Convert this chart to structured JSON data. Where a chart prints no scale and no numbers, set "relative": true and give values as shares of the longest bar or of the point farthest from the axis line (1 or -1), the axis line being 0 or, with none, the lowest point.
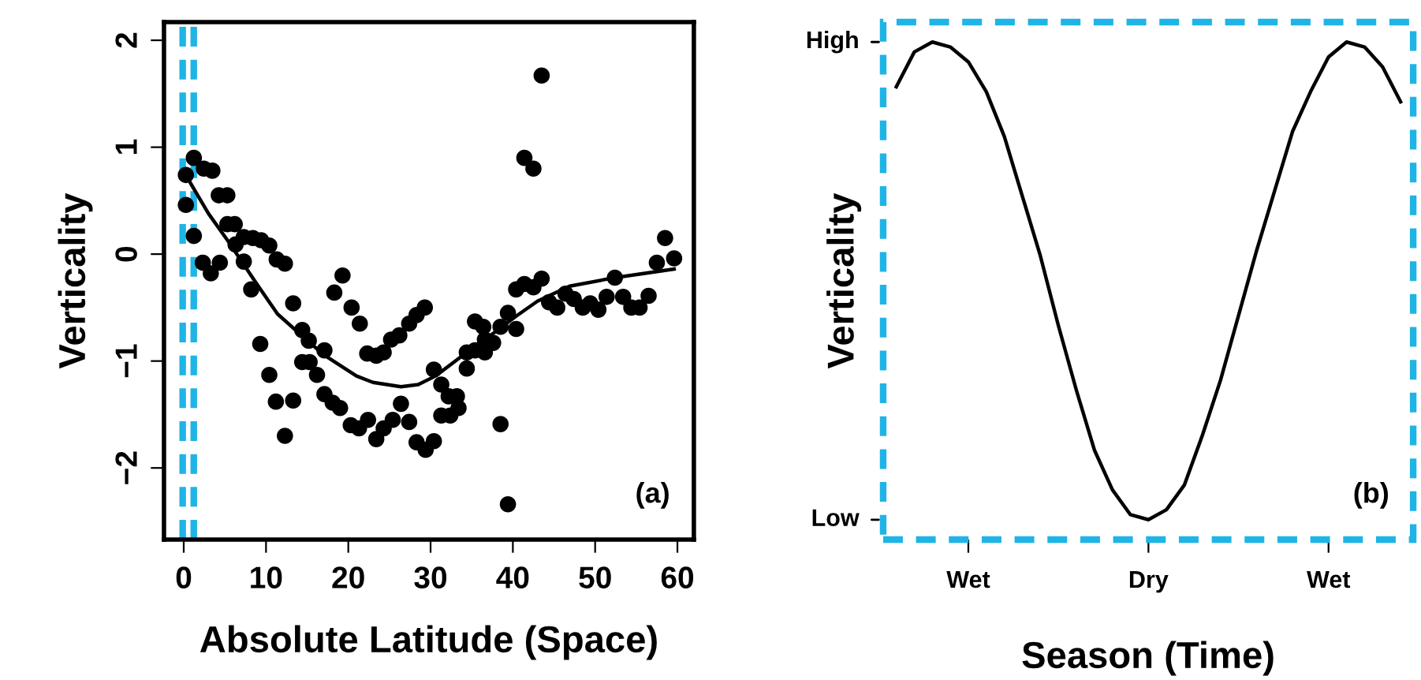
{
  "chart_data": [
    {
      "type": "scatter",
      "xlabel": "Absolute Latitude (Space)",
      "ylabel": "Verticality",
      "annotations": [
        "(a)"
      ],
      "legend": false,
      "xlim": [
        -2.4,
        62
      ],
      "ylim": [
        -2.67,
        2.17
      ],
      "xticks": [
        0,
        10,
        20,
        30,
        40,
        50,
        60
      ],
      "yticks": [
        -2,
        -1,
        0,
        1,
        2
      ],
      "ref_lines": [
        {
          "axis": "x",
          "value": -0.13,
          "color": "#1fb4e6",
          "line_style": "dashed"
        },
        {
          "axis": "x",
          "value": 1.22,
          "color": "#1fb4e6",
          "line_style": "dashed"
        }
      ],
      "series": [
        {
          "type": "scatter",
          "marker": "circle",
          "color": "#000000",
          "x": [
            0.26,
            0.26,
            1.23,
            1.23,
            2.32,
            2.45,
            3.48,
            3.29,
            4.39,
            4.26,
            5.3,
            5.3,
            6.2,
            6.3,
            7.3,
            7.3,
            8.2,
            8.4,
            9.4,
            10.4,
            11.3,
            12.3,
            13.3,
            18.3,
            19.3,
            20.4,
            29.3,
            28.3,
            39.4,
            40.4,
            41.4,
            41.4,
            42.5,
            43.5,
            42.5,
            43.5,
            44.4,
            45.4,
            46.4,
            47.4,
            48.5,
            49.4,
            50.4,
            51.4,
            52.4,
            53.4,
            54.4,
            55.4,
            56.5,
            57.5,
            58.5,
            59.6,
            9.3,
            10.4,
            11.2,
            12.3,
            13.3,
            14.4,
            15.2,
            14.4,
            15.3,
            17.1,
            16.2,
            17.1,
            18.1,
            19.0,
            21.4,
            20.3,
            21.3,
            22.4,
            22.3,
            23.4,
            24.3,
            23.4,
            24.3,
            25.4,
            25.2,
            26.2,
            26.4,
            27.4,
            27.4,
            28.3,
            29.4,
            30.4,
            30.4,
            31.3,
            32.2,
            31.3,
            32.4,
            33.2,
            33.4,
            34.4,
            34.4,
            35.4,
            35.4,
            36.4,
            36.6,
            36.6,
            37.6,
            38.5,
            40.4,
            38.5,
            39.4
          ],
          "values": [
            0.74,
            0.46,
            0.9,
            0.17,
            -0.08,
            0.8,
            0.78,
            -0.18,
            -0.08,
            0.55,
            0.55,
            0.28,
            0.28,
            0.09,
            0.16,
            -0.07,
            -0.33,
            0.15,
            0.13,
            0.08,
            -0.05,
            -0.09,
            -0.46,
            -0.36,
            -0.2,
            -0.5,
            -0.5,
            -0.57,
            -0.55,
            -0.33,
            -0.28,
            0.9,
            0.8,
            1.67,
            -0.31,
            -0.23,
            -0.45,
            -0.5,
            -0.37,
            -0.42,
            -0.5,
            -0.46,
            -0.52,
            -0.4,
            -0.22,
            -0.4,
            -0.5,
            -0.5,
            -0.39,
            -0.08,
            0.15,
            -0.04,
            -0.84,
            -1.13,
            -1.38,
            -1.7,
            -1.37,
            -0.71,
            -0.81,
            -1.01,
            -1.01,
            -0.9,
            -1.13,
            -1.31,
            -1.39,
            -1.44,
            -0.65,
            -1.6,
            -1.63,
            -1.55,
            -0.93,
            -0.95,
            -0.92,
            -1.73,
            -1.63,
            -1.55,
            -0.8,
            -0.76,
            -1.4,
            -1.57,
            -0.65,
            -1.76,
            -1.83,
            -1.75,
            -1.08,
            -1.22,
            -1.33,
            -1.51,
            -1.51,
            -1.33,
            -1.44,
            -1.07,
            -0.92,
            -0.9,
            -0.63,
            -0.68,
            -0.92,
            -0.8,
            -0.83,
            -0.68,
            -0.7,
            -1.59,
            -2.34
          ]
        },
        {
          "type": "line",
          "color": "#000000",
          "x": [
            0.7,
            3,
            5.5,
            8.8,
            11.4,
            14.9,
            17,
            19.4,
            21,
            23,
            26.4,
            28.5,
            30.6,
            33,
            35.4,
            38,
            40.4,
            43,
            46.9,
            52.4,
            59.6
          ],
          "values": [
            0.68,
            0.38,
            0.11,
            -0.27,
            -0.56,
            -0.8,
            -0.94,
            -1.06,
            -1.14,
            -1.2,
            -1.24,
            -1.22,
            -1.14,
            -1.0,
            -0.86,
            -0.72,
            -0.58,
            -0.44,
            -0.3,
            -0.22,
            -0.14
          ]
        }
      ]
    },
    {
      "type": "line",
      "relative": true,
      "xlabel": "Season (Time)",
      "ylabel": "Verticality",
      "annotations": [
        "(b)",
        "High",
        "Low"
      ],
      "legend": false,
      "categories": [
        null,
        null,
        null,
        null,
        "Wet",
        null,
        null,
        null,
        null,
        null,
        null,
        null,
        null,
        null,
        "Dry",
        null,
        null,
        null,
        null,
        null,
        null,
        null,
        null,
        null,
        "Wet",
        null,
        null,
        null,
        null
      ],
      "series": [
        {
          "color": "#000000",
          "values": [
            0.91,
            0.98,
            1,
            0.99,
            0.96,
            0.9,
            0.81,
            0.69,
            0.57,
            0.43,
            0.3,
            0.18,
            0.1,
            0.05,
            0.04,
            0.06,
            0.11,
            0.21,
            0.32,
            0.45,
            0.58,
            0.7,
            0.82,
            0.9,
            0.97,
            1,
            0.99,
            0.95,
            0.88
          ]
        }
      ]
    }
  ]
}
